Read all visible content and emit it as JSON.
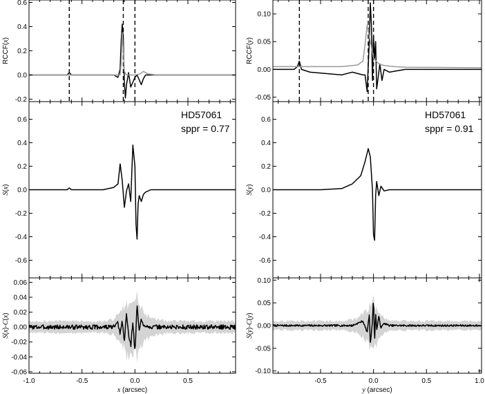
{
  "chart_data": [
    {
      "id": "top-left",
      "type": "line",
      "ylabel_segments": [
        {
          "t": "RCCF(",
          "i": false
        },
        {
          "t": "x",
          "i": true
        },
        {
          "t": ")",
          "i": false
        }
      ],
      "xlim": [
        -1.0,
        0.95
      ],
      "ylim": [
        -0.22,
        0.62
      ],
      "yticks": [
        -0.2,
        0.0,
        0.2,
        0.4,
        0.6
      ],
      "ytick_labels": [
        "-0.2",
        "0.0",
        "0.2",
        "0.4",
        "0.6"
      ],
      "vlines": [
        -0.62,
        -0.11,
        0.0
      ],
      "series": [
        {
          "color": "#000000",
          "width": 1.5,
          "x": [
            -1.0,
            -0.7,
            -0.64,
            -0.62,
            -0.6,
            -0.5,
            -0.3,
            -0.2,
            -0.16,
            -0.14,
            -0.13,
            -0.12,
            -0.11,
            -0.1,
            -0.09,
            -0.08,
            -0.06,
            -0.04,
            -0.02,
            0.0,
            0.02,
            0.04,
            0.06,
            0.08,
            0.1,
            0.12,
            0.2,
            0.4,
            0.95
          ],
          "y": [
            0.0,
            0.0,
            0.0,
            0.02,
            0.0,
            0.0,
            0.0,
            0.0,
            -0.02,
            0.05,
            0.28,
            0.42,
            0.3,
            -0.06,
            -0.19,
            -0.08,
            0.02,
            -0.1,
            -0.06,
            -0.02,
            0.0,
            -0.04,
            -0.08,
            -0.03,
            0.0,
            0.0,
            0.0,
            0.0,
            0.0
          ]
        },
        {
          "color": "#999999",
          "width": 1.5,
          "x": [
            -1.0,
            -0.2,
            -0.14,
            -0.13,
            -0.12,
            -0.11,
            -0.1,
            -0.08,
            0.0,
            0.05,
            0.08,
            0.12,
            0.2,
            0.95
          ],
          "y": [
            0.0,
            0.0,
            0.0,
            0.1,
            0.35,
            0.2,
            0.03,
            0.0,
            0.0,
            0.01,
            0.03,
            0.01,
            0.0,
            0.0
          ]
        }
      ]
    },
    {
      "id": "mid-left",
      "type": "line",
      "ylabel_segments": [
        {
          "t": "S",
          "i": true
        },
        {
          "t": "(",
          "i": false
        },
        {
          "t": "x",
          "i": true
        },
        {
          "t": ")",
          "i": false
        }
      ],
      "annotation": [
        "HD57061",
        "sppr = 0.77"
      ],
      "xlim": [
        -1.0,
        0.95
      ],
      "ylim": [
        -0.75,
        0.75
      ],
      "yticks": [
        -0.6,
        -0.4,
        -0.2,
        0.0,
        0.2,
        0.4,
        0.6
      ],
      "ytick_labels": [
        "-0.6",
        "-0.4",
        "-0.2",
        "0.0",
        "0.2",
        "0.4",
        "0.6"
      ],
      "series": [
        {
          "color": "#000000",
          "width": 1.5,
          "x": [
            -1.0,
            -0.64,
            -0.62,
            -0.6,
            -0.3,
            -0.2,
            -0.16,
            -0.14,
            -0.12,
            -0.1,
            -0.08,
            -0.06,
            -0.04,
            -0.02,
            0.0,
            0.01,
            0.02,
            0.03,
            0.04,
            0.06,
            0.08,
            0.1,
            0.15,
            0.3,
            0.95
          ],
          "y": [
            0.0,
            0.0,
            0.015,
            0.0,
            0.0,
            0.02,
            0.05,
            0.22,
            0.08,
            -0.15,
            -0.01,
            0.05,
            -0.1,
            0.38,
            0.2,
            -0.3,
            -0.42,
            -0.12,
            -0.05,
            -0.1,
            -0.04,
            -0.02,
            0.0,
            0.0,
            0.0
          ]
        }
      ]
    },
    {
      "id": "bot-left",
      "type": "line",
      "ylabel_segments": [
        {
          "t": "S",
          "i": true
        },
        {
          "t": "(",
          "i": false
        },
        {
          "t": "x",
          "i": true
        },
        {
          "t": ")-",
          "i": false
        },
        {
          "t": "C",
          "i": true
        },
        {
          "t": "(",
          "i": false
        },
        {
          "t": "x",
          "i": true
        },
        {
          "t": ")",
          "i": false
        }
      ],
      "xlabel_segments": [
        {
          "t": "x",
          "i": true
        },
        {
          "t": " (arcsec)",
          "i": false
        }
      ],
      "xlim": [
        -1.0,
        0.95
      ],
      "ylim": [
        -0.062,
        0.066
      ],
      "yticks": [
        -0.06,
        -0.04,
        -0.02,
        0.0,
        0.02,
        0.04,
        0.06
      ],
      "ytick_labels": [
        "-0.06",
        "-0.04",
        "-0.02",
        "0.00",
        "0.02",
        "0.04",
        "0.06"
      ],
      "xticks": [
        -1.0,
        -0.5,
        0.0,
        0.5
      ],
      "xtick_labels": [
        "-1.0",
        "-0.5",
        "0.0",
        "0.5"
      ],
      "noise": {
        "seed": 3,
        "amp": 0.003
      },
      "band": {
        "x": [
          -1.0,
          -0.3,
          -0.2,
          -0.15,
          -0.1,
          -0.06,
          -0.04,
          -0.02,
          0.0,
          0.02,
          0.04,
          0.08,
          0.15,
          0.3,
          0.95
        ],
        "lower": [
          -0.008,
          -0.008,
          -0.01,
          -0.02,
          -0.03,
          -0.045,
          -0.04,
          -0.04,
          -0.02,
          -0.04,
          -0.03,
          -0.02,
          -0.012,
          -0.008,
          -0.008
        ],
        "upper": [
          0.008,
          0.008,
          0.01,
          0.02,
          0.03,
          0.03,
          0.04,
          0.03,
          0.035,
          0.04,
          0.03,
          0.02,
          0.012,
          0.008,
          0.008
        ]
      },
      "series": [
        {
          "color": "#000000",
          "width": 1.5,
          "x": [
            -1.0,
            -0.2,
            -0.16,
            -0.14,
            -0.12,
            -0.1,
            -0.08,
            -0.06,
            -0.04,
            -0.02,
            0.0,
            0.02,
            0.04,
            0.06,
            0.08,
            0.1,
            0.15,
            0.95
          ],
          "y": [
            0.0,
            0.0,
            0.005,
            -0.01,
            0.008,
            -0.02,
            0.018,
            -0.01,
            -0.025,
            0.008,
            -0.035,
            0.03,
            -0.005,
            0.01,
            0.0,
            0.003,
            0.0,
            0.0
          ]
        }
      ]
    },
    {
      "id": "top-right",
      "type": "line",
      "ylabel_segments": [
        {
          "t": "RCCF(",
          "i": false
        },
        {
          "t": "y",
          "i": true
        },
        {
          "t": ")",
          "i": false
        }
      ],
      "xlim": [
        -0.95,
        1.02
      ],
      "ylim": [
        -0.058,
        0.125
      ],
      "yticks": [
        -0.05,
        0.0,
        0.05,
        0.1
      ],
      "ytick_labels": [
        "-0.05",
        "0.00",
        "0.05",
        "0.10"
      ],
      "vlines": [
        -0.7,
        -0.05,
        0.0
      ],
      "series": [
        {
          "color": "#000000",
          "width": 1.5,
          "x": [
            -0.95,
            -0.75,
            -0.72,
            -0.7,
            -0.68,
            -0.6,
            -0.3,
            -0.2,
            -0.1,
            -0.08,
            -0.06,
            -0.04,
            -0.03,
            -0.02,
            -0.01,
            0.0,
            0.01,
            0.02,
            0.03,
            0.04,
            0.06,
            0.08,
            0.1,
            0.15,
            0.3,
            1.02
          ],
          "y": [
            0.0,
            0.0,
            0.005,
            0.015,
            0.0,
            -0.005,
            -0.01,
            -0.005,
            -0.01,
            -0.01,
            -0.04,
            0.05,
            0.12,
            0.08,
            -0.02,
            0.06,
            0.02,
            0.05,
            -0.035,
            -0.02,
            0.01,
            -0.02,
            0.0,
            -0.005,
            0.0,
            0.0
          ]
        },
        {
          "color": "#999999",
          "width": 1.5,
          "x": [
            -0.95,
            -0.3,
            -0.15,
            -0.1,
            -0.08,
            -0.06,
            -0.05,
            -0.04,
            -0.02,
            0.0,
            0.05,
            0.1,
            0.2,
            0.3,
            1.02
          ],
          "y": [
            0.005,
            0.005,
            0.008,
            0.015,
            0.045,
            0.08,
            0.07,
            0.06,
            0.04,
            0.02,
            0.01,
            0.007,
            0.005,
            0.004,
            0.003
          ]
        }
      ]
    },
    {
      "id": "mid-right",
      "type": "line",
      "ylabel_segments": [
        {
          "t": "S",
          "i": true
        },
        {
          "t": "(",
          "i": false
        },
        {
          "t": "y",
          "i": true
        },
        {
          "t": ")",
          "i": false
        }
      ],
      "annotation": [
        "HD57061",
        "sppr = 0.91"
      ],
      "xlim": [
        -0.95,
        1.02
      ],
      "ylim": [
        -0.75,
        0.75
      ],
      "yticks": [
        -0.6,
        -0.4,
        -0.2,
        0.0,
        0.2,
        0.4,
        0.6
      ],
      "ytick_labels": [
        "-0.6",
        "-0.4",
        "-0.2",
        "0.0",
        "0.2",
        "0.4",
        "0.6"
      ],
      "series": [
        {
          "color": "#000000",
          "width": 1.5,
          "x": [
            -0.95,
            -0.5,
            -0.3,
            -0.2,
            -0.12,
            -0.08,
            -0.05,
            -0.03,
            -0.01,
            0.0,
            0.01,
            0.02,
            0.03,
            0.05,
            0.07,
            0.1,
            0.15,
            0.3,
            1.02
          ],
          "y": [
            0.0,
            0.0,
            0.01,
            0.05,
            0.12,
            0.24,
            0.35,
            0.28,
            0.0,
            -0.38,
            -0.43,
            -0.05,
            0.07,
            -0.05,
            0.03,
            -0.01,
            0.0,
            0.0,
            0.0
          ]
        }
      ]
    },
    {
      "id": "bot-right",
      "type": "line",
      "ylabel_segments": [
        {
          "t": "S",
          "i": true
        },
        {
          "t": "(",
          "i": false
        },
        {
          "t": "y",
          "i": true
        },
        {
          "t": ")-",
          "i": false
        },
        {
          "t": "C",
          "i": true
        },
        {
          "t": "(",
          "i": false
        },
        {
          "t": "y",
          "i": true
        },
        {
          "t": ")",
          "i": false
        }
      ],
      "xlabel_segments": [
        {
          "t": "y",
          "i": true
        },
        {
          "t": " (arcsec)",
          "i": false
        }
      ],
      "xlim": [
        -0.95,
        1.02
      ],
      "ylim": [
        -0.105,
        0.105
      ],
      "yticks": [
        -0.1,
        -0.05,
        0.0,
        0.05,
        0.1
      ],
      "ytick_labels": [
        "-0.10",
        "-0.05",
        "0.00",
        "0.05",
        "0.10"
      ],
      "xticks": [
        -0.5,
        0.0,
        0.5,
        1.0
      ],
      "xtick_labels": [
        "-0.5",
        "0.0",
        "0.5",
        "1.0"
      ],
      "noise": {
        "seed": 7,
        "amp": 0.002
      },
      "band": {
        "x": [
          -0.95,
          -0.3,
          -0.15,
          -0.08,
          -0.04,
          -0.02,
          0.0,
          0.02,
          0.04,
          0.08,
          0.15,
          0.3,
          1.02
        ],
        "lower": [
          -0.01,
          -0.01,
          -0.015,
          -0.03,
          -0.045,
          -0.05,
          -0.045,
          -0.05,
          -0.03,
          -0.02,
          -0.012,
          -0.01,
          -0.01
        ],
        "upper": [
          0.01,
          0.01,
          0.015,
          0.03,
          0.04,
          0.05,
          0.06,
          0.04,
          0.03,
          0.02,
          0.012,
          0.01,
          0.01
        ]
      },
      "series": [
        {
          "color": "#000000",
          "width": 1.5,
          "x": [
            -0.95,
            -0.2,
            -0.15,
            -0.1,
            -0.06,
            -0.04,
            -0.03,
            -0.01,
            0.0,
            0.01,
            0.02,
            0.03,
            0.05,
            0.07,
            0.1,
            0.15,
            1.02
          ],
          "y": [
            0.0,
            0.0,
            0.005,
            0.01,
            -0.015,
            0.025,
            -0.04,
            0.01,
            0.06,
            -0.04,
            0.03,
            -0.01,
            0.02,
            -0.005,
            0.005,
            0.0,
            0.0
          ]
        }
      ]
    }
  ]
}
